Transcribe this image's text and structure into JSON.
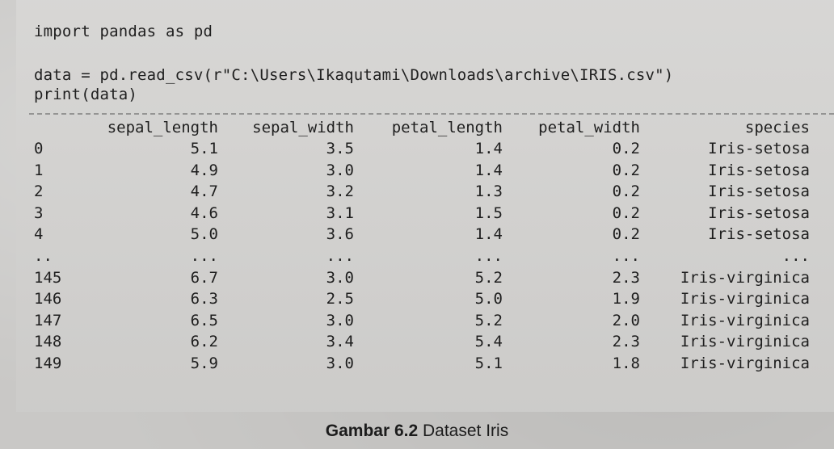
{
  "code": {
    "line_import": "import pandas as pd",
    "line_read": "data = pd.read_csv(r\"C:\\Users\\Ikaqutami\\Downloads\\archive\\IRIS.csv\")",
    "line_print": "print(data)"
  },
  "table": {
    "columns": [
      "sepal_length",
      "sepal_width",
      "petal_length",
      "petal_width",
      "species"
    ],
    "rows": [
      {
        "idx": "0",
        "sepal_length": "5.1",
        "sepal_width": "3.5",
        "petal_length": "1.4",
        "petal_width": "0.2",
        "species": "Iris-setosa"
      },
      {
        "idx": "1",
        "sepal_length": "4.9",
        "sepal_width": "3.0",
        "petal_length": "1.4",
        "petal_width": "0.2",
        "species": "Iris-setosa"
      },
      {
        "idx": "2",
        "sepal_length": "4.7",
        "sepal_width": "3.2",
        "petal_length": "1.3",
        "petal_width": "0.2",
        "species": "Iris-setosa"
      },
      {
        "idx": "3",
        "sepal_length": "4.6",
        "sepal_width": "3.1",
        "petal_length": "1.5",
        "petal_width": "0.2",
        "species": "Iris-setosa"
      },
      {
        "idx": "4",
        "sepal_length": "5.0",
        "sepal_width": "3.6",
        "petal_length": "1.4",
        "petal_width": "0.2",
        "species": "Iris-setosa"
      },
      {
        "idx": "..",
        "sepal_length": "...",
        "sepal_width": "...",
        "petal_length": "...",
        "petal_width": "...",
        "species": "..."
      },
      {
        "idx": "145",
        "sepal_length": "6.7",
        "sepal_width": "3.0",
        "petal_length": "5.2",
        "petal_width": "2.3",
        "species": "Iris-virginica"
      },
      {
        "idx": "146",
        "sepal_length": "6.3",
        "sepal_width": "2.5",
        "petal_length": "5.0",
        "petal_width": "1.9",
        "species": "Iris-virginica"
      },
      {
        "idx": "147",
        "sepal_length": "6.5",
        "sepal_width": "3.0",
        "petal_length": "5.2",
        "petal_width": "2.0",
        "species": "Iris-virginica"
      },
      {
        "idx": "148",
        "sepal_length": "6.2",
        "sepal_width": "3.4",
        "petal_length": "5.4",
        "petal_width": "2.3",
        "species": "Iris-virginica"
      },
      {
        "idx": "149",
        "sepal_length": "5.9",
        "sepal_width": "3.0",
        "petal_length": "5.1",
        "petal_width": "1.8",
        "species": "Iris-virginica"
      }
    ]
  },
  "caption": {
    "label": "Gambar 6.2",
    "text": " Dataset Iris"
  }
}
